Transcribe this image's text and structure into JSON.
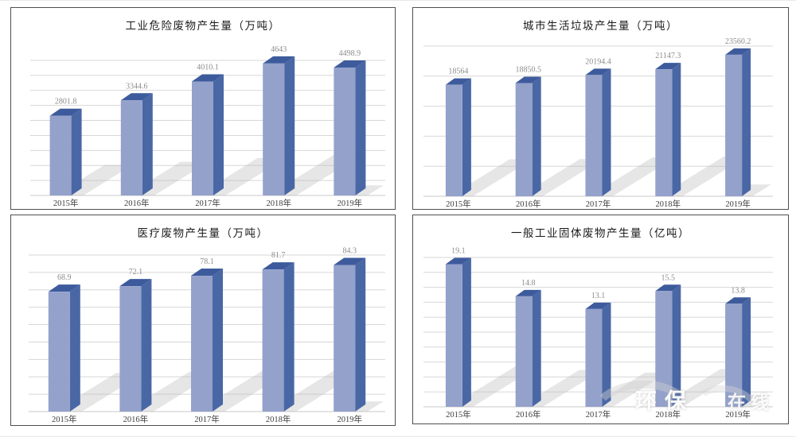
{
  "style": {
    "background": "#ffffff",
    "panel_border": "#4f4f4f",
    "bar_front": "#93a1cb",
    "bar_side": "#4a67a5",
    "bar_top": "#3d5b9c",
    "bar_shadow": "#bcbcbc",
    "gridline": "#d7d7d7",
    "baseline": "#c9c9c9",
    "value_label": "#8c8c8c",
    "axis_label": "#3c3c3c",
    "title": "#1a1a1a"
  },
  "watermark": {
    "text_main": "环保",
    "text_sub": "在线"
  },
  "chart_data": [
    {
      "type": "bar",
      "title": "工业危险废物产生量（万吨）",
      "categories": [
        "2015年",
        "2016年",
        "2017年",
        "2018年",
        "2019年"
      ],
      "values": [
        2801.8,
        3344.6,
        4010.1,
        4643,
        4498.9
      ],
      "value_labels": [
        "2801.8",
        "3344.6",
        "4010.1",
        "4643",
        "4498.9"
      ],
      "xlabel": "",
      "ylabel": "",
      "ylim": [
        0,
        4750
      ],
      "gridline_count": 10,
      "legend": "none",
      "grid": "horizontal"
    },
    {
      "type": "bar",
      "title": "城市生活垃圾产生量（万吨）",
      "categories": [
        "2015年",
        "2016年",
        "2017年",
        "2018年",
        "2019年"
      ],
      "values": [
        18564,
        18850.5,
        20194.4,
        21147.3,
        23560.2
      ],
      "value_labels": [
        "18564",
        "18850.5",
        "20194.4",
        "21147.3",
        "23560.2"
      ],
      "xlabel": "",
      "ylabel": "",
      "ylim": [
        0,
        25000
      ],
      "gridline_count": 6,
      "legend": "none",
      "grid": "horizontal"
    },
    {
      "type": "bar",
      "title": "医疗废物产生量（万吨）",
      "categories": [
        "2015年",
        "2016年",
        "2017年",
        "2018年",
        "2019年"
      ],
      "values": [
        68.9,
        72.1,
        78.1,
        81.7,
        84.3
      ],
      "value_labels": [
        "68.9",
        "72.1",
        "78.1",
        "81.7",
        "84.3"
      ],
      "xlabel": "",
      "ylabel": "",
      "ylim": [
        0,
        90
      ],
      "gridline_count": 10,
      "legend": "none",
      "grid": "horizontal"
    },
    {
      "type": "bar",
      "title": "一般工业固体废物产生量（亿吨）",
      "categories": [
        "2015年",
        "2016年",
        "2017年",
        "2018年",
        "2019年"
      ],
      "values": [
        19.1,
        14.8,
        13.1,
        15.5,
        13.8
      ],
      "value_labels": [
        "19.1",
        "14.8",
        "13.1",
        "15.5",
        "13.8"
      ],
      "xlabel": "",
      "ylabel": "",
      "ylim": [
        0,
        20
      ],
      "gridline_count": 11,
      "legend": "none",
      "grid": "horizontal"
    }
  ]
}
